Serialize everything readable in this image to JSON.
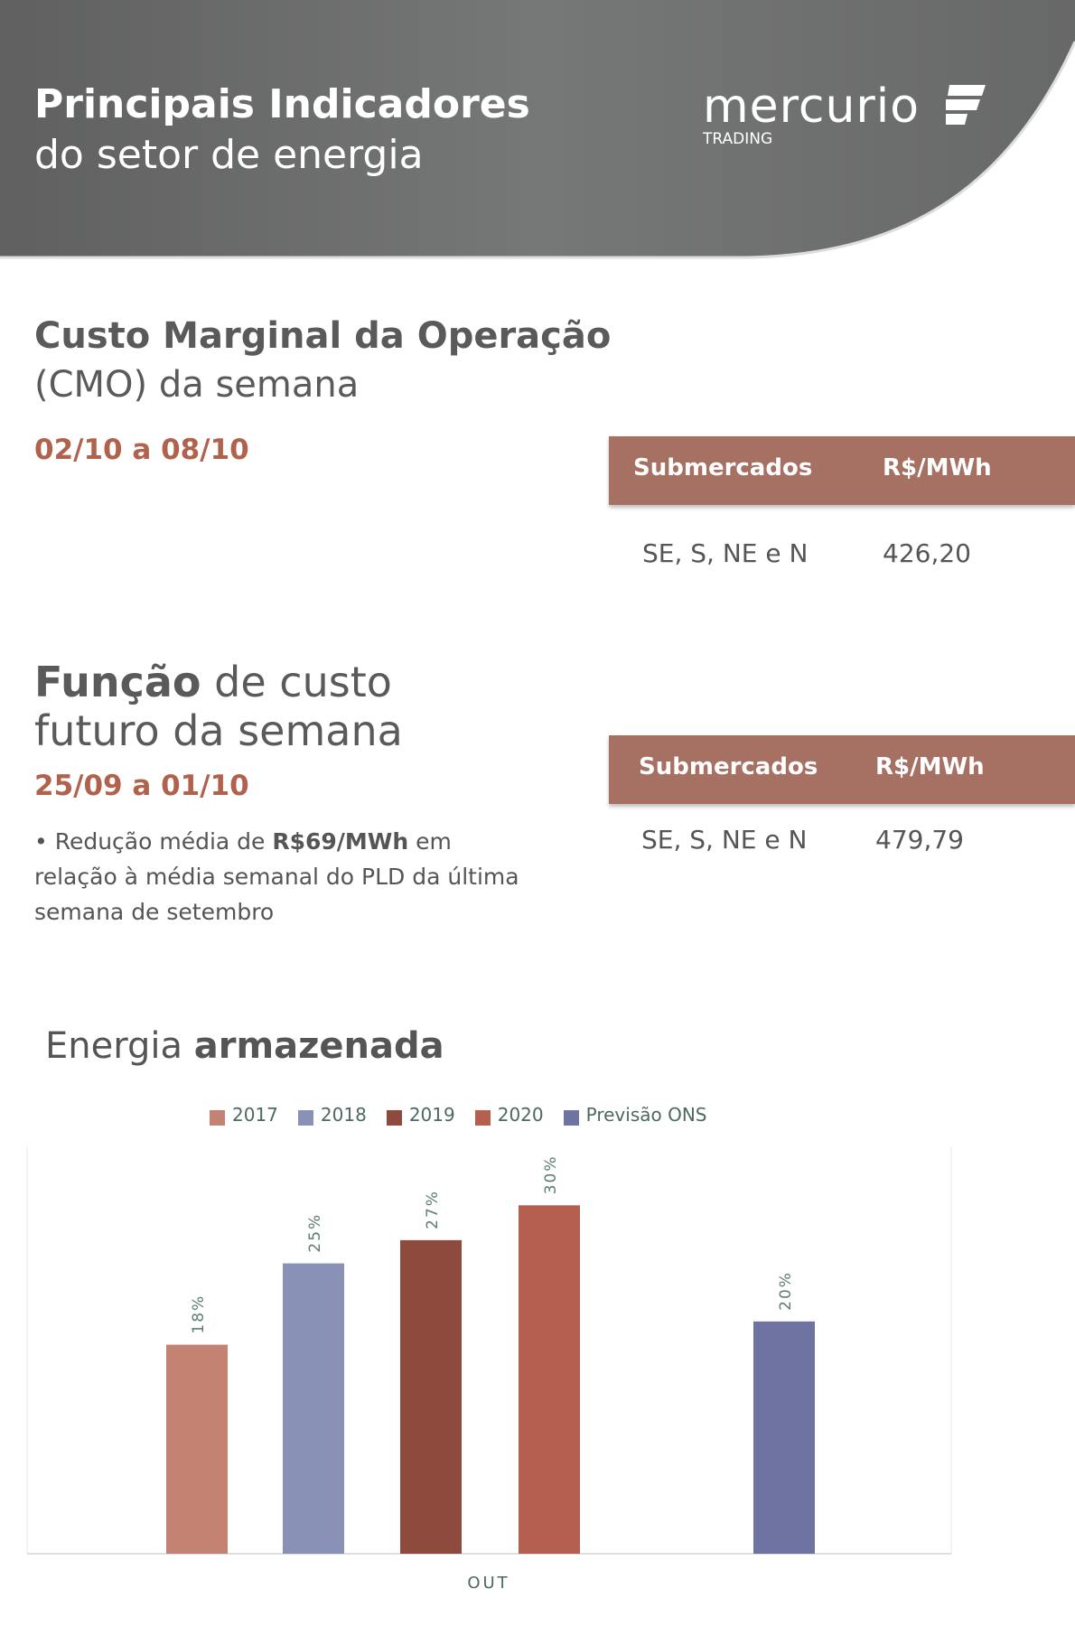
{
  "header": {
    "title_bold": "Principais Indicadores",
    "title_light": "do setor de energia",
    "logo_word": "mercurio",
    "logo_sub": "TRADING"
  },
  "cmo": {
    "title_bold": "Custo Marginal da Operação",
    "title_light": "(CMO) da semana",
    "date": "02/10 a 08/10",
    "table": {
      "col1": "Submercados",
      "col2": "R$/MWh",
      "row": {
        "market": "SE, S, NE e N",
        "value": "426,20"
      }
    }
  },
  "fcf": {
    "title_bold": "Função",
    "title_rest": " de custo",
    "title_line2": "futuro da semana",
    "date": "25/09 a 01/10",
    "note_pre": "• Redução média de ",
    "note_bold": "R$69/MWh",
    "note_post": " em relação à média semanal do PLD da última semana de setembro",
    "table": {
      "col1": "Submercados",
      "col2": "R$/MWh",
      "row": {
        "market": "SE, S, NE e N",
        "value": "479,79"
      }
    }
  },
  "chart_title": {
    "light": "Energia ",
    "bold": "armazenada"
  },
  "chart_data": {
    "type": "bar",
    "title": "Energia armazenada",
    "xlabel": "",
    "ylabel": "",
    "ylim": [
      0,
      35
    ],
    "categories": [
      "OUT"
    ],
    "series": [
      {
        "name": "2017",
        "values": [
          18
        ],
        "label": "18%",
        "color": "#c48272"
      },
      {
        "name": "2018",
        "values": [
          25
        ],
        "label": "25%",
        "color": "#8a91b6"
      },
      {
        "name": "2019",
        "values": [
          27
        ],
        "label": "27%",
        "color": "#8e4b3d"
      },
      {
        "name": "2020",
        "values": [
          30
        ],
        "label": "30%",
        "color": "#b5604f"
      },
      {
        "name": "Previsão ONS",
        "values": [
          20
        ],
        "label": "20%",
        "color": "#6f73a2"
      }
    ],
    "legend": "top",
    "grid": false
  }
}
